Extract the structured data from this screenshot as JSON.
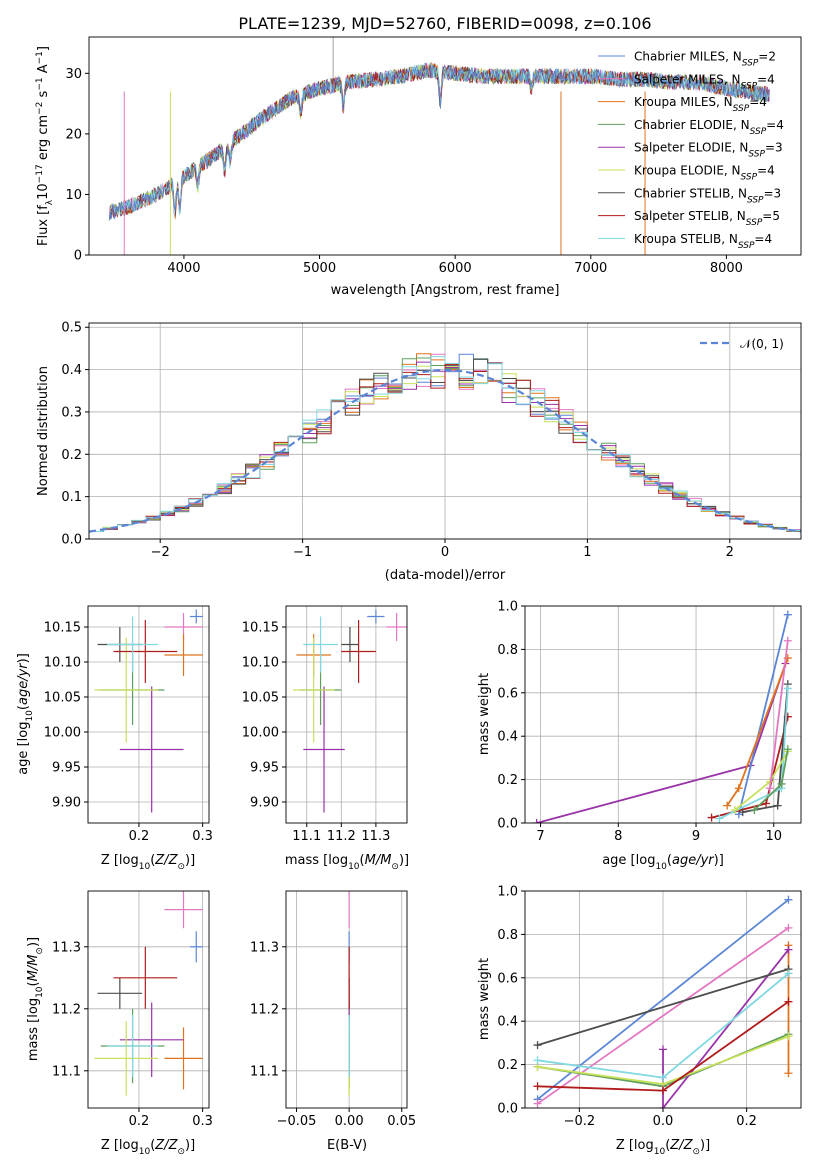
{
  "title": "PLATE=1239, MJD=52760, FIBERID=0098, z=0.106",
  "colors": {
    "Chabrier MILES": "#5b86d6",
    "Salpeter MILES": "#e377c2",
    "Kroupa MILES": "#e0731f",
    "Chabrier ELODIE": "#5fa05f",
    "Salpeter ELODIE": "#9932a8",
    "Kroupa ELODIE": "#c8e05a",
    "Chabrier STELIB": "#4d4d4d",
    "Salpeter STELIB": "#b01c1c",
    "Kroupa STELIB": "#80d8e0"
  },
  "chart_data": [
    {
      "id": "spectrum",
      "type": "line",
      "xlabel": "wavelength [Angstrom, rest frame]",
      "ylabel": "Flux [f_λ 10^-17 erg cm^-2 s^-1 A^-1]",
      "xlim": [
        3300,
        8550
      ],
      "ylim": [
        0,
        36
      ],
      "xticks": [
        4000,
        5000,
        6000,
        7000,
        8000
      ],
      "yticks": [
        0,
        10,
        20,
        30
      ],
      "legend_position": "upper-right",
      "legend": [
        {
          "model": "Chabrier MILES",
          "nssp": "2"
        },
        {
          "model": "Salpeter MILES",
          "nssp": "4"
        },
        {
          "model": "Kroupa MILES",
          "nssp": "4"
        },
        {
          "model": "Chabrier ELODIE",
          "nssp": "4"
        },
        {
          "model": "Salpeter ELODIE",
          "nssp": "3"
        },
        {
          "model": "Kroupa ELODIE",
          "nssp": "4"
        },
        {
          "model": "Chabrier STELIB",
          "nssp": "3"
        },
        {
          "model": "Salpeter STELIB",
          "nssp": "5"
        },
        {
          "model": "Kroupa STELIB",
          "nssp": "4"
        }
      ],
      "continuum": {
        "x": [
          3450,
          3600,
          3800,
          4000,
          4200,
          4400,
          4600,
          4800,
          5000,
          5200,
          5400,
          5600,
          5800,
          6000,
          6200,
          6400,
          6600,
          6800,
          7000,
          7200,
          7400,
          7600,
          7800,
          8000,
          8300
        ],
        "y": [
          7,
          8,
          10,
          13,
          16,
          19.5,
          23,
          26,
          27.5,
          28.5,
          29,
          29.5,
          30.5,
          30,
          29.5,
          29.5,
          29.5,
          29.5,
          29.5,
          29,
          29,
          28.5,
          28.5,
          27.5,
          26.5
        ]
      }
    },
    {
      "id": "residuals",
      "type": "line",
      "xlabel": "(data-model)/error",
      "ylabel": "Normed distribution",
      "xlim": [
        -2.5,
        2.5
      ],
      "ylim": [
        0,
        0.51
      ],
      "xticks": [
        -2,
        -1,
        0,
        1,
        2
      ],
      "yticks": [
        0.0,
        0.1,
        0.2,
        0.3,
        0.4,
        0.5
      ],
      "legend_position": "upper-right",
      "reference_label": "N(0,1)"
    },
    {
      "id": "age-vs-Z",
      "type": "scatter",
      "xlabel": "Z [log10(Z/Z⊙)]",
      "ylabel": "age [log10(age/yr)]",
      "xlim": [
        0.12,
        0.31
      ],
      "ylim": [
        9.87,
        10.18
      ],
      "xticks": [
        0.2,
        0.3
      ],
      "yticks": [
        9.9,
        9.95,
        10.0,
        10.05,
        10.1,
        10.15
      ]
    },
    {
      "id": "age-vs-mass",
      "type": "scatter",
      "xlabel": "mass [log10(M/M⊙)]",
      "xlim": [
        11.04,
        11.39
      ],
      "ylim": [
        9.87,
        10.18
      ],
      "xticks": [
        11.1,
        11.2,
        11.3
      ],
      "yticks": [
        9.9,
        9.95,
        10.0,
        10.05,
        10.1,
        10.15
      ]
    },
    {
      "id": "weight-vs-age",
      "type": "line",
      "xlabel": "age [log10(age/yr)]",
      "ylabel": "mass weight",
      "xlim": [
        6.8,
        10.35
      ],
      "ylim": [
        0,
        1
      ],
      "xticks": [
        7,
        8,
        9,
        10
      ],
      "yticks": [
        0.0,
        0.2,
        0.4,
        0.6,
        0.8,
        1.0
      ]
    },
    {
      "id": "mass-vs-Z",
      "type": "scatter",
      "xlabel": "Z [log10(Z/Z⊙)]",
      "ylabel": "mass [log10(M/M⊙)]",
      "xlim": [
        0.12,
        0.31
      ],
      "ylim": [
        11.04,
        11.39
      ],
      "xticks": [
        0.2,
        0.3
      ],
      "yticks": [
        11.1,
        11.2,
        11.3
      ]
    },
    {
      "id": "mass-vs-ebv",
      "type": "scatter",
      "xlabel": "E(B-V)",
      "xlim": [
        -0.06,
        0.055
      ],
      "ylim": [
        11.04,
        11.39
      ],
      "xticks": [
        -0.05,
        0.0,
        0.05
      ],
      "yticks": [
        11.1,
        11.2,
        11.3
      ]
    },
    {
      "id": "weight-vs-Z",
      "type": "line",
      "xlabel": "Z [log10(Z/Z⊙)]",
      "ylabel": "mass weight",
      "xlim": [
        -0.33,
        0.33
      ],
      "ylim": [
        0,
        1
      ],
      "xticks": [
        -0.2,
        0.0,
        0.2
      ],
      "yticks": [
        0.0,
        0.2,
        0.4,
        0.6,
        0.8,
        1.0
      ]
    }
  ],
  "estimates": [
    {
      "model": "Chabrier MILES",
      "Z": 0.29,
      "Zerr": 0.01,
      "age": 10.165,
      "ageErr": 0.01,
      "mass": 11.3,
      "massErr": 0.025,
      "mErr": 0.02
    },
    {
      "model": "Salpeter MILES",
      "Z": 0.27,
      "Zerr": 0.03,
      "age": 10.15,
      "ageErr": 0.02,
      "mass": 11.36,
      "massErr": 0.03,
      "mErr": 0.03
    },
    {
      "model": "Kroupa MILES",
      "Z": 0.27,
      "Zerr": 0.03,
      "age": 10.11,
      "ageErr": 0.03,
      "mass": 11.12,
      "massErr": 0.05,
      "mErr": 0.03
    },
    {
      "model": "Chabrier ELODIE",
      "Z": 0.19,
      "Zerr": 0.05,
      "age": 10.06,
      "ageErr": 0.05,
      "mass": 11.14,
      "massErr": 0.06,
      "mErr": 0.04
    },
    {
      "model": "Salpeter ELODIE",
      "Z": 0.22,
      "Zerr": 0.05,
      "age": 9.975,
      "ageErr": 0.09,
      "mass": 11.15,
      "massErr": 0.06,
      "mErr": 0.04
    },
    {
      "model": "Kroupa ELODIE",
      "Z": 0.18,
      "Zerr": 0.05,
      "age": 10.06,
      "ageErr": 0.075,
      "mass": 11.12,
      "massErr": 0.06,
      "mErr": 0.04
    },
    {
      "model": "Chabrier STELIB",
      "Z": 0.17,
      "Zerr": 0.035,
      "age": 10.125,
      "ageErr": 0.025,
      "mass": 11.225,
      "massErr": 0.025,
      "mErr": 0.02
    },
    {
      "model": "Salpeter STELIB",
      "Z": 0.21,
      "Zerr": 0.05,
      "age": 10.115,
      "ageErr": 0.045,
      "mass": 11.25,
      "massErr": 0.05,
      "mErr": 0.02
    },
    {
      "model": "Kroupa STELIB",
      "Z": 0.19,
      "Zerr": 0.04,
      "age": 10.125,
      "ageErr": 0.04,
      "mass": 11.14,
      "massErr": 0.05,
      "mErr": 0.03
    }
  ],
  "weights_vs_age": [
    {
      "model": "Salpeter ELODIE",
      "ages": [
        6.95,
        9.7,
        10.15
      ],
      "w": [
        0.0,
        0.265,
        0.735
      ]
    },
    {
      "model": "Chabrier MILES",
      "ages": [
        9.55,
        10.18
      ],
      "w": [
        0.04,
        0.96
      ]
    },
    {
      "model": "Kroupa MILES",
      "ages": [
        9.4,
        9.55,
        10.18
      ],
      "w": [
        0.08,
        0.16,
        0.76
      ]
    },
    {
      "model": "Salpeter STELIB",
      "ages": [
        9.2,
        9.9,
        10.18
      ],
      "w": [
        0.025,
        0.09,
        0.49
      ]
    },
    {
      "model": "Chabrier STELIB",
      "ages": [
        9.6,
        10.05,
        10.18
      ],
      "w": [
        0.05,
        0.08,
        0.64
      ]
    },
    {
      "model": "Kroupa STELIB",
      "ages": [
        9.3,
        10.1,
        10.18
      ],
      "w": [
        0.02,
        0.16,
        0.62
      ]
    },
    {
      "model": "Kroupa ELODIE",
      "ages": [
        9.5,
        9.95,
        10.18
      ],
      "w": [
        0.06,
        0.19,
        0.33
      ]
    },
    {
      "model": "Salpeter MILES",
      "ages": [
        9.95,
        10.18
      ],
      "w": [
        0.16,
        0.84
      ]
    },
    {
      "model": "Chabrier ELODIE",
      "ages": [
        9.75,
        10.1,
        10.18
      ],
      "w": [
        0.06,
        0.18,
        0.34
      ]
    }
  ],
  "weights_vs_Z": [
    {
      "model": "Chabrier MILES",
      "Z": [
        -0.3,
        0.3
      ],
      "w": [
        0.04,
        0.96
      ]
    },
    {
      "model": "Salpeter MILES",
      "Z": [
        -0.3,
        0.3
      ],
      "w": [
        0.02,
        0.83
      ]
    },
    {
      "model": "Kroupa MILES",
      "Z": [
        0.3,
        0.3
      ],
      "w": [
        0.16,
        0.75
      ]
    },
    {
      "model": "Chabrier ELODIE",
      "Z": [
        -0.3,
        0.0,
        0.3
      ],
      "w": [
        0.19,
        0.1,
        0.34
      ]
    },
    {
      "model": "Salpeter ELODIE",
      "Z": [
        0.0,
        0.0,
        0.3
      ],
      "w": [
        0.27,
        0.0,
        0.73
      ]
    },
    {
      "model": "Kroupa ELODIE",
      "Z": [
        -0.3,
        0.0,
        0.3
      ],
      "w": [
        0.19,
        0.11,
        0.33
      ]
    },
    {
      "model": "Chabrier STELIB",
      "Z": [
        -0.3,
        0.3
      ],
      "w": [
        0.29,
        0.64
      ]
    },
    {
      "model": "Salpeter STELIB",
      "Z": [
        -0.3,
        0.0,
        0.3
      ],
      "w": [
        0.1,
        0.08,
        0.49
      ]
    },
    {
      "model": "Kroupa STELIB",
      "Z": [
        -0.3,
        0.0,
        0.3
      ],
      "w": [
        0.22,
        0.14,
        0.62
      ]
    }
  ]
}
